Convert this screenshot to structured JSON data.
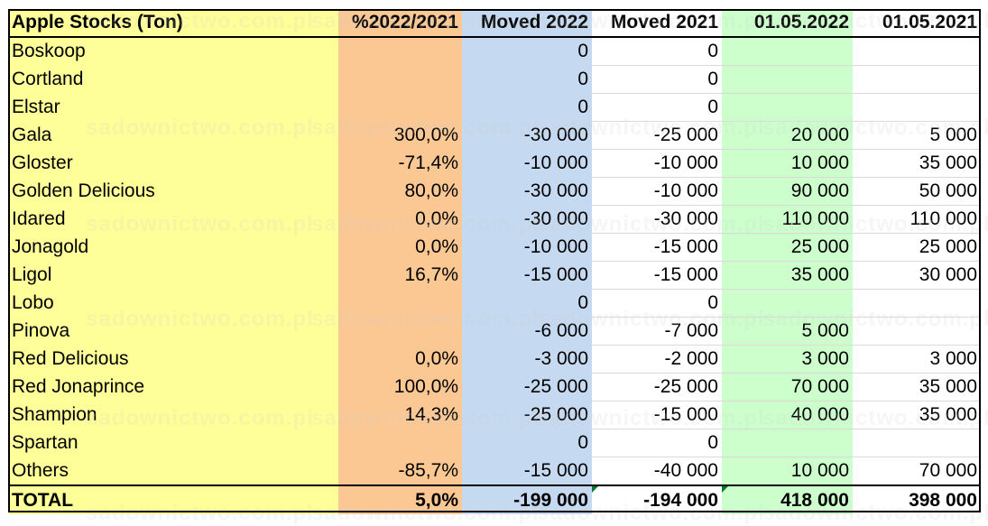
{
  "table": {
    "headers": {
      "name": "Apple Stocks (Ton)",
      "pct": "%2022/2021",
      "moved_2022": "Moved 2022",
      "moved_2021": "Moved 2021",
      "stock_2022": "01.05.2022",
      "stock_2021": "01.05.2021"
    },
    "rows": [
      {
        "name": "Boskoop",
        "pct": "",
        "moved_2022": "0",
        "moved_2021": "0",
        "stock_2022": "",
        "stock_2021": ""
      },
      {
        "name": "Cortland",
        "pct": "",
        "moved_2022": "0",
        "moved_2021": "0",
        "stock_2022": "",
        "stock_2021": ""
      },
      {
        "name": "Elstar",
        "pct": "",
        "moved_2022": "0",
        "moved_2021": "0",
        "stock_2022": "",
        "stock_2021": ""
      },
      {
        "name": "Gala",
        "pct": "300,0%",
        "moved_2022": "-30 000",
        "moved_2021": "-25 000",
        "stock_2022": "20 000",
        "stock_2021": "5 000"
      },
      {
        "name": "Gloster",
        "pct": "-71,4%",
        "moved_2022": "-10 000",
        "moved_2021": "-10 000",
        "stock_2022": "10 000",
        "stock_2021": "35 000"
      },
      {
        "name": "Golden Delicious",
        "pct": "80,0%",
        "moved_2022": "-30 000",
        "moved_2021": "-10 000",
        "stock_2022": "90 000",
        "stock_2021": "50 000"
      },
      {
        "name": "Idared",
        "pct": "0,0%",
        "moved_2022": "-30 000",
        "moved_2021": "-30 000",
        "stock_2022": "110 000",
        "stock_2021": "110 000"
      },
      {
        "name": "Jonagold",
        "pct": "0,0%",
        "moved_2022": "-10 000",
        "moved_2021": "-15 000",
        "stock_2022": "25 000",
        "stock_2021": "25 000"
      },
      {
        "name": "Ligol",
        "pct": "16,7%",
        "moved_2022": "-15 000",
        "moved_2021": "-15 000",
        "stock_2022": "35 000",
        "stock_2021": "30 000"
      },
      {
        "name": "Lobo",
        "pct": "",
        "moved_2022": "0",
        "moved_2021": "0",
        "stock_2022": "",
        "stock_2021": ""
      },
      {
        "name": "Pinova",
        "pct": "",
        "moved_2022": "-6 000",
        "moved_2021": "-7 000",
        "stock_2022": "5 000",
        "stock_2021": ""
      },
      {
        "name": "Red Delicious",
        "pct": "0,0%",
        "moved_2022": "-3 000",
        "moved_2021": "-2 000",
        "stock_2022": "3 000",
        "stock_2021": "3 000"
      },
      {
        "name": "Red Jonaprince",
        "pct": "100,0%",
        "moved_2022": "-25 000",
        "moved_2021": "-25 000",
        "stock_2022": "70 000",
        "stock_2021": "35 000"
      },
      {
        "name": "Shampion",
        "pct": "14,3%",
        "moved_2022": "-25 000",
        "moved_2021": "-15 000",
        "stock_2022": "40 000",
        "stock_2021": "35 000"
      },
      {
        "name": "Spartan",
        "pct": "",
        "moved_2022": "0",
        "moved_2021": "0",
        "stock_2022": "",
        "stock_2021": ""
      },
      {
        "name": "Others",
        "pct": "-85,7%",
        "moved_2022": "-15 000",
        "moved_2021": "-40 000",
        "stock_2022": "10 000",
        "stock_2021": "70 000"
      }
    ],
    "total": {
      "name": "TOTAL",
      "pct": "5,0%",
      "moved_2022": "-199 000",
      "moved_2021": "-194 000",
      "stock_2022": "418 000",
      "stock_2021": "398 000"
    }
  },
  "watermark": "sadownictwo.com.pl",
  "colors": {
    "name_column": "#ffff99",
    "pct_column": "#fbc894",
    "moved_2022_column": "#c5d9f1",
    "stock_2022_column": "#ccffcc",
    "cell_marker": "#007a33"
  }
}
